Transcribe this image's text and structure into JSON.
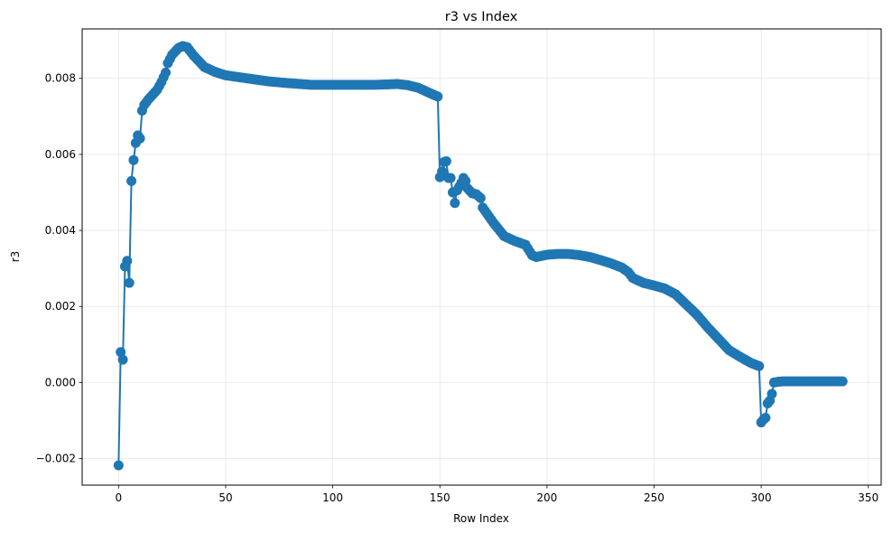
{
  "chart_data": {
    "type": "line",
    "title": "r3 vs Index",
    "xlabel": "Row Index",
    "ylabel": "r3",
    "xlim": [
      -17,
      356
    ],
    "ylim": [
      -0.0027,
      0.0093
    ],
    "xticks": [
      0,
      50,
      100,
      150,
      200,
      250,
      300,
      350
    ],
    "yticks": [
      -0.002,
      0.0,
      0.002,
      0.004,
      0.006,
      0.008
    ],
    "ytick_labels": [
      "−0.002",
      "0.000",
      "0.002",
      "0.004",
      "0.006",
      "0.008"
    ],
    "grid": true,
    "legend": "none",
    "color": "#1f77b4",
    "marker": "circle",
    "series": [
      {
        "anchors": [
          [
            0,
            -0.00218
          ],
          [
            1,
            0.0008
          ],
          [
            2,
            0.0006
          ],
          [
            3,
            0.00305
          ],
          [
            4,
            0.0032
          ],
          [
            5,
            0.00262
          ],
          [
            6,
            0.0053
          ],
          [
            7,
            0.00585
          ],
          [
            8,
            0.0063
          ],
          [
            9,
            0.0065
          ],
          [
            10,
            0.00642
          ],
          [
            11,
            0.00715
          ],
          [
            12,
            0.0073
          ],
          [
            14,
            0.00745
          ],
          [
            18,
            0.0077
          ],
          [
            20,
            0.0079
          ],
          [
            22,
            0.00815
          ],
          [
            23,
            0.0084
          ],
          [
            25,
            0.00862
          ],
          [
            28,
            0.0088
          ],
          [
            30,
            0.00885
          ],
          [
            32,
            0.00882
          ],
          [
            35,
            0.0086
          ],
          [
            40,
            0.0083
          ],
          [
            45,
            0.00817
          ],
          [
            50,
            0.00808
          ],
          [
            60,
            0.008
          ],
          [
            70,
            0.00792
          ],
          [
            80,
            0.00787
          ],
          [
            90,
            0.00783
          ],
          [
            100,
            0.00783
          ],
          [
            110,
            0.00783
          ],
          [
            120,
            0.00783
          ],
          [
            130,
            0.00785
          ],
          [
            135,
            0.00782
          ],
          [
            140,
            0.00775
          ],
          [
            145,
            0.00762
          ],
          [
            149,
            0.00752
          ],
          [
            150,
            0.0054
          ],
          [
            151,
            0.00555
          ],
          [
            152,
            0.0058
          ],
          [
            153,
            0.00582
          ],
          [
            154,
            0.00538
          ],
          [
            155,
            0.00538
          ],
          [
            156,
            0.005
          ],
          [
            157,
            0.00472
          ],
          [
            158,
            0.00505
          ],
          [
            160,
            0.00525
          ],
          [
            161,
            0.00538
          ],
          [
            162,
            0.0053
          ],
          [
            163,
            0.0051
          ],
          [
            165,
            0.00498
          ],
          [
            167,
            0.00495
          ],
          [
            169,
            0.00485
          ],
          [
            170,
            0.0046
          ],
          [
            175,
            0.0042
          ],
          [
            180,
            0.00385
          ],
          [
            185,
            0.00372
          ],
          [
            190,
            0.00362
          ],
          [
            193,
            0.00335
          ],
          [
            195,
            0.0033
          ],
          [
            200,
            0.00336
          ],
          [
            205,
            0.00338
          ],
          [
            210,
            0.00338
          ],
          [
            215,
            0.00335
          ],
          [
            220,
            0.0033
          ],
          [
            225,
            0.00322
          ],
          [
            230,
            0.00313
          ],
          [
            235,
            0.00302
          ],
          [
            238,
            0.0029
          ],
          [
            240,
            0.00275
          ],
          [
            245,
            0.00262
          ],
          [
            250,
            0.00255
          ],
          [
            255,
            0.00247
          ],
          [
            260,
            0.00232
          ],
          [
            265,
            0.00205
          ],
          [
            270,
            0.00178
          ],
          [
            275,
            0.00145
          ],
          [
            280,
            0.00115
          ],
          [
            285,
            0.00085
          ],
          [
            290,
            0.00068
          ],
          [
            295,
            0.00052
          ],
          [
            299,
            0.00043
          ],
          [
            300,
            -0.00105
          ],
          [
            301,
            -0.00098
          ],
          [
            302,
            -0.00093
          ],
          [
            303,
            -0.00055
          ],
          [
            304,
            -0.00048
          ],
          [
            305,
            -0.0003
          ],
          [
            306,
            0.0
          ],
          [
            308,
            2e-05
          ],
          [
            310,
            3e-05
          ],
          [
            315,
            3e-05
          ],
          [
            320,
            3e-05
          ],
          [
            330,
            3e-05
          ],
          [
            338,
            3e-05
          ]
        ]
      }
    ]
  }
}
